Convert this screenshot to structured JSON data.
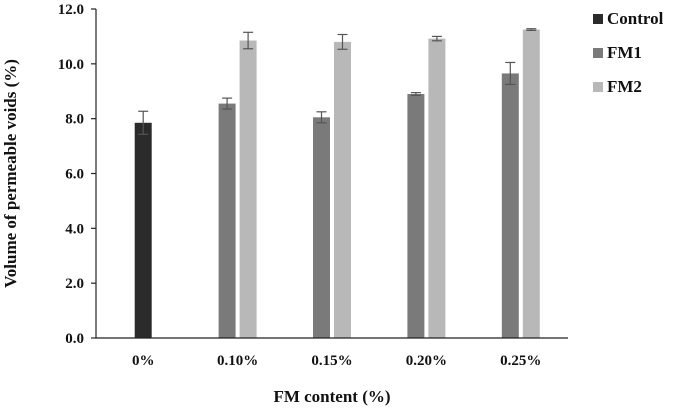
{
  "chart_data": {
    "type": "bar",
    "title": "",
    "xlabel": "FM content (%)",
    "ylabel": "Volume of permeable voids (%)",
    "ylim": [
      0,
      12
    ],
    "yticks": [
      "0.0",
      "2.0",
      "4.0",
      "6.0",
      "8.0",
      "10.0",
      "12.0"
    ],
    "categories": [
      "0%",
      "0.10%",
      "0.15%",
      "0.20%",
      "0.25%"
    ],
    "grid": false,
    "legend_position": "top-right",
    "series": [
      {
        "name": "Control",
        "color": "#2b2b2b",
        "values": [
          7.85,
          null,
          null,
          null,
          null
        ],
        "errors": [
          0.42,
          null,
          null,
          null,
          null
        ]
      },
      {
        "name": "FM1",
        "color": "#7a7a7a",
        "values": [
          null,
          8.55,
          8.05,
          8.9,
          9.65
        ],
        "errors": [
          null,
          0.2,
          0.2,
          0.05,
          0.4
        ]
      },
      {
        "name": "FM2",
        "color": "#b8b8b8",
        "values": [
          null,
          10.85,
          10.8,
          10.92,
          11.25
        ],
        "errors": [
          null,
          0.3,
          0.27,
          0.08,
          0.03
        ]
      }
    ]
  }
}
